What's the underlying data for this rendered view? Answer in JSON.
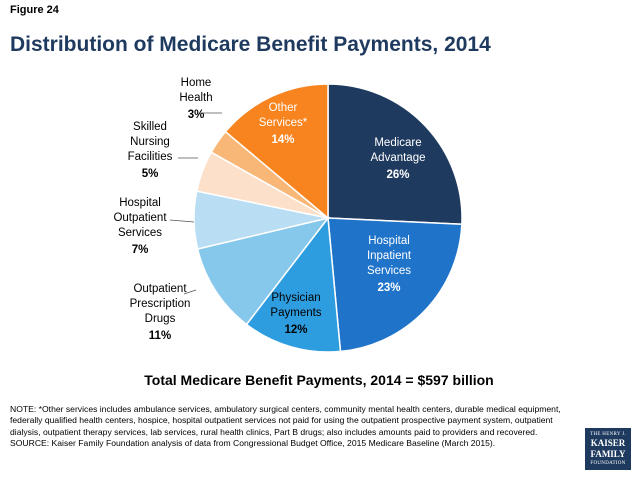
{
  "figure_label": "Figure 24",
  "chart_data": {
    "type": "pie",
    "title": "Distribution of Medicare Benefit Payments, 2014",
    "slices": [
      {
        "lines": [
          "Medicare",
          "Advantage"
        ],
        "pct_label": "26%",
        "value": 26,
        "color": "#1f3a5f",
        "text_color": "#ffffff"
      },
      {
        "lines": [
          "Hospital",
          "Inpatient",
          "Services"
        ],
        "pct_label": "23%",
        "value": 23,
        "color": "#1f73c9",
        "text_color": "#ffffff"
      },
      {
        "lines": [
          "Physician",
          "Payments"
        ],
        "pct_label": "12%",
        "value": 12,
        "color": "#2e9de0",
        "text_color": "#000000"
      },
      {
        "lines": [
          "Outpatient",
          "Prescription",
          "Drugs"
        ],
        "pct_label": "11%",
        "value": 11,
        "color": "#86c8ec",
        "text_color": "#000000"
      },
      {
        "lines": [
          "Hospital",
          "Outpatient",
          "Services"
        ],
        "pct_label": "7%",
        "value": 7,
        "color": "#b9def3",
        "text_color": "#000000"
      },
      {
        "lines": [
          "Skilled",
          "Nursing",
          "Facilities"
        ],
        "pct_label": "5%",
        "value": 5,
        "color": "#fde0c9",
        "text_color": "#000000"
      },
      {
        "lines": [
          "Home",
          "Health"
        ],
        "pct_label": "3%",
        "value": 3,
        "color": "#f8b777",
        "text_color": "#000000"
      },
      {
        "lines": [
          "Other",
          "Services*"
        ],
        "pct_label": "14%",
        "value": 14,
        "color": "#f7841f",
        "text_color": "#ffffff"
      }
    ],
    "total_label": "Total Medicare Benefit Payments, 2014 = $597 billion"
  },
  "note": "NOTE: *Other services includes ambulance services, ambulatory surgical centers, community mental health centers, durable medical equipment, federally qualified health centers, hospice, hospital outpatient services not paid for using the outpatient prospective payment system, outpatient dialysis, outpatient therapy services, lab services, rural health clinics, Part B drugs; also includes  amounts paid to providers and recovered.",
  "source": "SOURCE: Kaiser Family Foundation analysis of data from Congressional Budget Office, 2015 Medicare Baseline (March 2015).",
  "logo": {
    "line1": "THE HENRY J.",
    "line2a": "KAISER",
    "line2b": "FAMILY",
    "line3": "FOUNDATION"
  }
}
